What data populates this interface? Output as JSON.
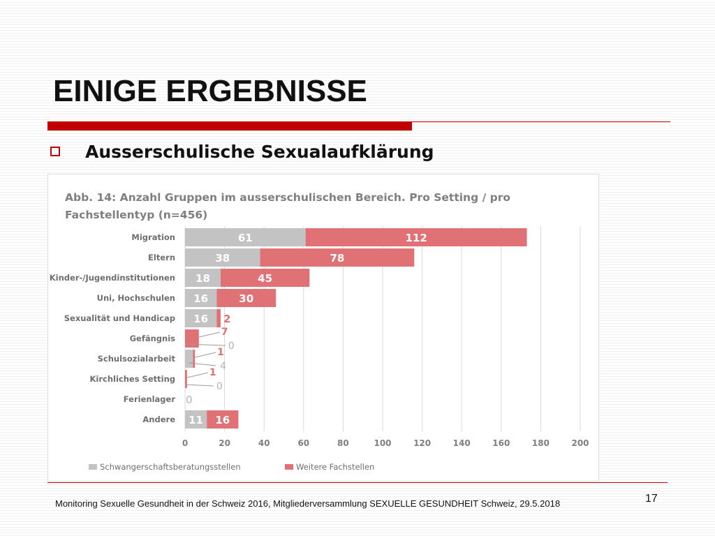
{
  "slide": {
    "title": "EINIGE ERGEBNISSE",
    "bullet": "Ausserschulische Sexualaufklärung",
    "footer": "Monitoring Sexuelle Gesundheit in der Schweiz 2016, Mitgliederversammlung SEXUELLE GESUNDHEIT Schweiz, 29.5.2018",
    "page_number": "17",
    "accent_color": "#c00000"
  },
  "chart_data": {
    "type": "bar",
    "orientation": "horizontal",
    "stacked": true,
    "title_lines": [
      "Abb. 14: Anzahl Gruppen im ausserschulischen Bereich. Pro Setting / pro",
      "Fachstellentyp (n=456)"
    ],
    "categories": [
      "Migration",
      "Eltern",
      "Kinder-/Jugendinstitutionen",
      "Uni, Hochschulen",
      "Sexualität und Handicap",
      "Gefängnis",
      "Schulsozialarbeit",
      "Kirchliches Setting",
      "Ferienlager",
      "Andere"
    ],
    "series": [
      {
        "name": "Schwangerschaftsberatungsstellen",
        "color": "#c3c3c3",
        "label_color": "#b3b3b3",
        "values": [
          61,
          38,
          18,
          16,
          16,
          0,
          4,
          0,
          0,
          11
        ]
      },
      {
        "name": "Weitere Fachstellen",
        "color": "#e07276",
        "label_color": "#e07276",
        "values": [
          112,
          78,
          45,
          30,
          2,
          7,
          1,
          1,
          0,
          16
        ]
      }
    ],
    "xlim": [
      0,
      200
    ],
    "xticks": [
      "0",
      "20",
      "40",
      "60",
      "80",
      "100",
      "120",
      "140",
      "160",
      "180",
      "200"
    ],
    "grid": true,
    "legend_position": "bottom-left"
  }
}
